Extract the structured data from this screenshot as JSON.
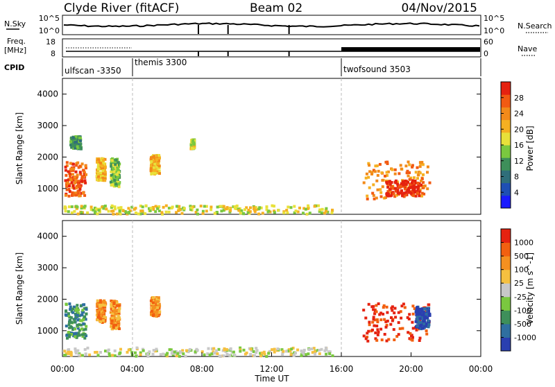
{
  "header": {
    "station": "Clyde River (fitACF)",
    "beam": "Beam 02",
    "date": "04/Nov/2015"
  },
  "panels": {
    "nsky": {
      "label": "N.Sky",
      "left_ticks": [
        "10^5",
        "10^0"
      ],
      "right_ticks": [
        "10^5",
        "10^0"
      ],
      "right_label": "N.Search"
    },
    "freq": {
      "label_line1": "Freq.",
      "label_line2": "[MHz]",
      "left_ticks": [
        "18",
        "8"
      ],
      "right_ticks": [
        "60",
        "0"
      ],
      "right_label": "Nave"
    },
    "cpid": {
      "label": "CPID",
      "segments": [
        {
          "name": "ulfscan -3350",
          "start_hour": 0
        },
        {
          "name": "themis 3300",
          "start_hour": 4
        },
        {
          "name": "twofsound 3503",
          "start_hour": 16
        }
      ]
    }
  },
  "chart_data": [
    {
      "type": "heatmap",
      "name": "power",
      "xlabel": "Time UT",
      "ylabel": "Slant Range [km]",
      "xlim_hours": [
        0,
        24
      ],
      "ylim_km": [
        180,
        4500
      ],
      "y_ticks": [
        "1000",
        "2000",
        "3000",
        "4000"
      ],
      "x_ticks": [
        "00:00",
        "04:00",
        "08:00",
        "12:00",
        "16:00",
        "20:00",
        "00:00"
      ],
      "colorbar": {
        "label": "Power [dB]",
        "ticks": [
          "28",
          "24",
          "20",
          "16",
          "12",
          "8",
          "4"
        ],
        "colors": [
          "#1a1aff",
          "#1f4fb4",
          "#2f6e7a",
          "#3e8f5a",
          "#7ac83f",
          "#e8e13a",
          "#f5b022",
          "#f28a1a",
          "#f25a12",
          "#e52210"
        ]
      },
      "clusters": [
        {
          "t0": 0.1,
          "t1": 1.3,
          "r0": 800,
          "r1": 1900,
          "level": 8
        },
        {
          "t0": 0.4,
          "t1": 1.0,
          "r0": 2300,
          "r1": 2700,
          "level": 3
        },
        {
          "t0": 1.9,
          "t1": 2.4,
          "r0": 1300,
          "r1": 2000,
          "level": 6
        },
        {
          "t0": 2.7,
          "t1": 3.2,
          "r0": 1100,
          "r1": 2000,
          "level": 4
        },
        {
          "t0": 5.0,
          "t1": 5.5,
          "r0": 1500,
          "r1": 2100,
          "level": 6
        },
        {
          "t0": 7.3,
          "t1": 7.5,
          "r0": 2300,
          "r1": 2600,
          "level": 5
        },
        {
          "t0": 17.2,
          "t1": 21.0,
          "r0": 700,
          "r1": 1900,
          "level": 7
        },
        {
          "t0": 18.5,
          "t1": 20.5,
          "r0": 800,
          "r1": 1300,
          "level": 9
        },
        {
          "t0": 0.0,
          "t1": 15.5,
          "r0": 180,
          "r1": 500,
          "level": 5
        }
      ]
    },
    {
      "type": "heatmap",
      "name": "velocity",
      "xlabel": "Time UT",
      "ylabel": "Slant Range [km]",
      "xlim_hours": [
        0,
        24
      ],
      "ylim_km": [
        180,
        4500
      ],
      "y_ticks": [
        "1000",
        "2000",
        "3000",
        "4000"
      ],
      "x_ticks": [
        "00:00",
        "04:00",
        "08:00",
        "12:00",
        "16:00",
        "20:00",
        "00:00"
      ],
      "colorbar": {
        "label": "Velocity [m s^-1]",
        "ticks": [
          "1000",
          "500",
          "100",
          "25",
          "-25",
          "-100",
          "-500",
          "-1000"
        ],
        "colors": [
          "#2a3fb0",
          "#2f6fa0",
          "#3e8f5a",
          "#7ac83f",
          "#c8c8c8",
          "#f5c040",
          "#f59020",
          "#f26010",
          "#e52210"
        ]
      },
      "clusters": [
        {
          "t0": 0.1,
          "t1": 1.3,
          "r0": 800,
          "r1": 1900,
          "level": 2
        },
        {
          "t0": 1.9,
          "t1": 2.4,
          "r0": 1300,
          "r1": 2000,
          "level": 6
        },
        {
          "t0": 2.7,
          "t1": 3.2,
          "r0": 1100,
          "r1": 2000,
          "level": 6
        },
        {
          "t0": 5.0,
          "t1": 5.5,
          "r0": 1500,
          "r1": 2100,
          "level": 6
        },
        {
          "t0": 17.2,
          "t1": 21.0,
          "r0": 700,
          "r1": 1900,
          "level": 8
        },
        {
          "t0": 20.2,
          "t1": 21.0,
          "r0": 1100,
          "r1": 1800,
          "level": 0
        },
        {
          "t0": 0.0,
          "t1": 15.5,
          "r0": 180,
          "r1": 500,
          "level": 4
        }
      ]
    }
  ]
}
